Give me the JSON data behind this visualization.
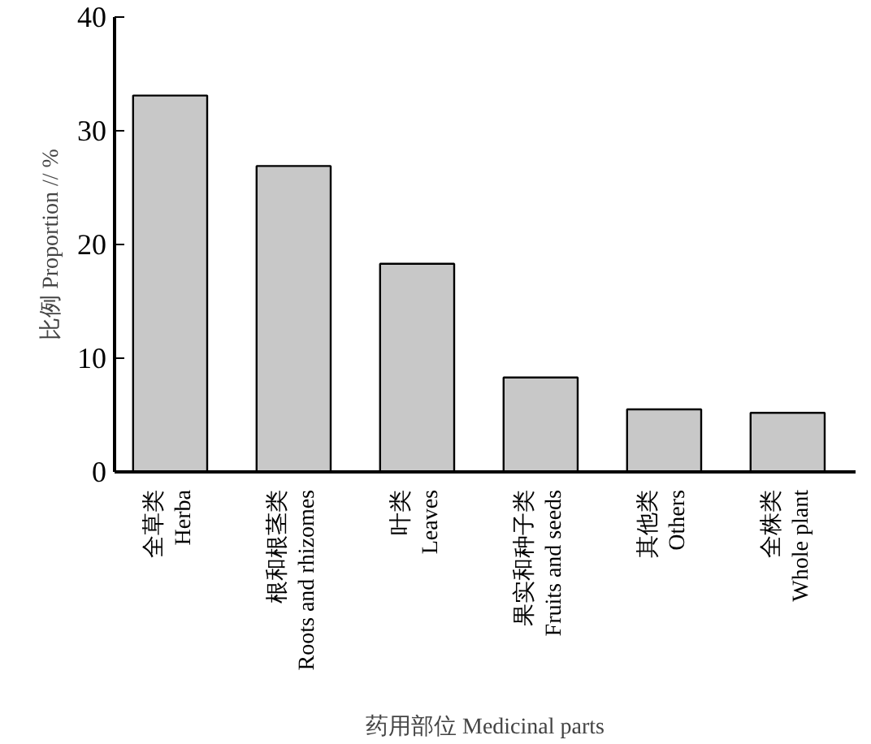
{
  "chart_data": {
    "type": "bar",
    "xlabel": "药用部位 Medicinal parts",
    "ylabel": "比例 Proportion // %",
    "categories": [
      "全草类\nHerba",
      "根和根茎类\nRoots and rhizomes",
      "叶类\nLeaves",
      "果实和种子类\nFruits and seeds",
      "其他类\nOthers",
      "全株类\nWhole plant"
    ],
    "values": [
      33.1,
      26.9,
      18.3,
      8.3,
      5.5,
      5.2
    ],
    "color": "#c8c8c8",
    "ylim": [
      0,
      40
    ],
    "yticks": [
      0,
      10,
      20,
      30,
      40
    ],
    "grid": false
  }
}
